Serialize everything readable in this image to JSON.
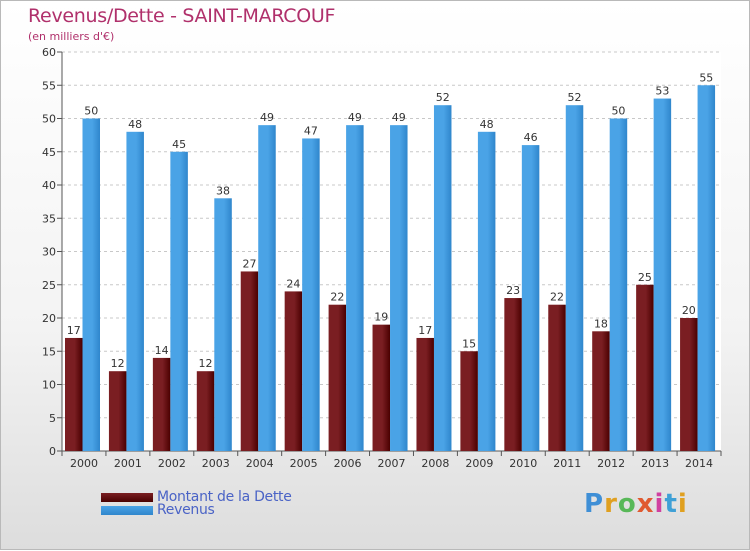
{
  "title": "Revenus/Dette - SAINT-MARCOUF",
  "subtitle": "(en milliers d'€)",
  "legend": {
    "debt_label": "Montant de la Dette",
    "revenue_label": "Revenus"
  },
  "logo": {
    "text": "Proxiti",
    "letters": [
      "P",
      "r",
      "o",
      "x",
      "i",
      "t",
      "i"
    ]
  },
  "colors": {
    "debt": "#7a1e22",
    "debt_dark": "#4a0000",
    "revenue": "#4aa3e6",
    "revenue_dark": "#2f86cc",
    "title": "#b0306b",
    "legend_text": "#4a63c6"
  },
  "chart_data": {
    "type": "bar",
    "categories": [
      "2000",
      "2001",
      "2002",
      "2003",
      "2004",
      "2005",
      "2006",
      "2007",
      "2008",
      "2009",
      "2010",
      "2011",
      "2012",
      "2013",
      "2014"
    ],
    "series": [
      {
        "name": "Montant de la Dette",
        "values": [
          17,
          12,
          14,
          12,
          27,
          24,
          22,
          19,
          17,
          15,
          23,
          22,
          18,
          25,
          20
        ]
      },
      {
        "name": "Revenus",
        "values": [
          50,
          48,
          45,
          38,
          49,
          47,
          49,
          49,
          52,
          48,
          46,
          52,
          50,
          53,
          55
        ]
      }
    ],
    "ylim": [
      0,
      60
    ],
    "yticks": [
      0,
      5,
      10,
      15,
      20,
      25,
      30,
      35,
      40,
      45,
      50,
      55,
      60
    ],
    "grid": true,
    "legend_position": "bottom-left"
  }
}
